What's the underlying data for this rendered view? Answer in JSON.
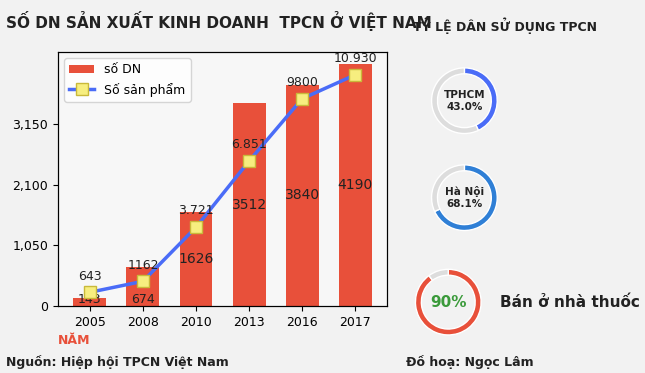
{
  "chart_data": {
    "type": "bar",
    "title": "SỐ DN SẢN XUẤT KINH DOANH  TPCN Ở VIỆT NAM",
    "x_label": "NĂM",
    "categories": [
      "2005",
      "2008",
      "2010",
      "2013",
      "2016",
      "2017"
    ],
    "series": [
      {
        "name": "số DN",
        "type": "bar",
        "color": "#e8503a",
        "values": [
          143,
          674,
          1626,
          3512,
          3840,
          4190
        ]
      },
      {
        "name": "Số sản phẩm",
        "type": "line",
        "axis": "y2",
        "color": "#4a6cf7",
        "marker": "square",
        "values": [
          643,
          1162,
          3721,
          6851,
          9800,
          10930
        ],
        "value_labels": [
          "643",
          "1162",
          "3.721",
          "6.851",
          "9800",
          "10.930"
        ]
      }
    ],
    "ylim": [
      0,
      4400
    ],
    "yticks": [
      0,
      {
        "value": 1050,
        "label": "1,050"
      },
      {
        "value": 2100,
        "label": "2,100"
      },
      {
        "value": 3150,
        "label": "3,150"
      }
    ],
    "y2lim": [
      0,
      12000
    ],
    "y2ticks": [],
    "data_labels": true,
    "legend": "upper left",
    "grid": false
  },
  "panel": {
    "title": "TỶ LỆ DÂN SỬ DỤNG TPCN",
    "items": [
      {
        "label": "TPHCM",
        "value": 43.0,
        "value_label": "43.0%"
      },
      {
        "label": "Hà Nội",
        "value": 68.1,
        "value_label": "68.1%"
      },
      {
        "label": "Bán ở nhà thuốc",
        "value": 90,
        "value_label": "90%"
      }
    ]
  },
  "footer": {
    "source": "Nguồn: Hiệp hội TPCN Việt Nam",
    "credit": "Đồ hoạ: Ngọc Lâm"
  }
}
